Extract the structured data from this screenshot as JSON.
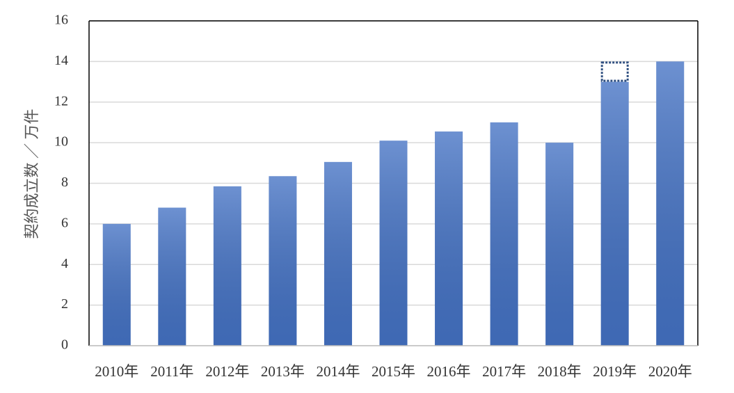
{
  "chart_data": {
    "type": "bar",
    "y_label": "契約成立数 ／ 万件",
    "categories": [
      "2010年",
      "2011年",
      "2012年",
      "2013年",
      "2014年",
      "2015年",
      "2016年",
      "2017年",
      "2018年",
      "2019年",
      "2020年"
    ],
    "values": [
      6.0,
      6.8,
      7.85,
      8.35,
      9.05,
      10.1,
      10.55,
      11.0,
      10.0,
      13.0,
      14.0
    ],
    "outline_values": [
      null,
      null,
      null,
      null,
      null,
      null,
      null,
      null,
      null,
      1.0,
      null
    ],
    "color": "#4472c4",
    "outline_color": "#2f4f80",
    "ylim": [
      0,
      16
    ],
    "yticks": [
      0,
      2,
      4,
      6,
      8,
      10,
      12,
      14,
      16
    ],
    "grid": true
  }
}
